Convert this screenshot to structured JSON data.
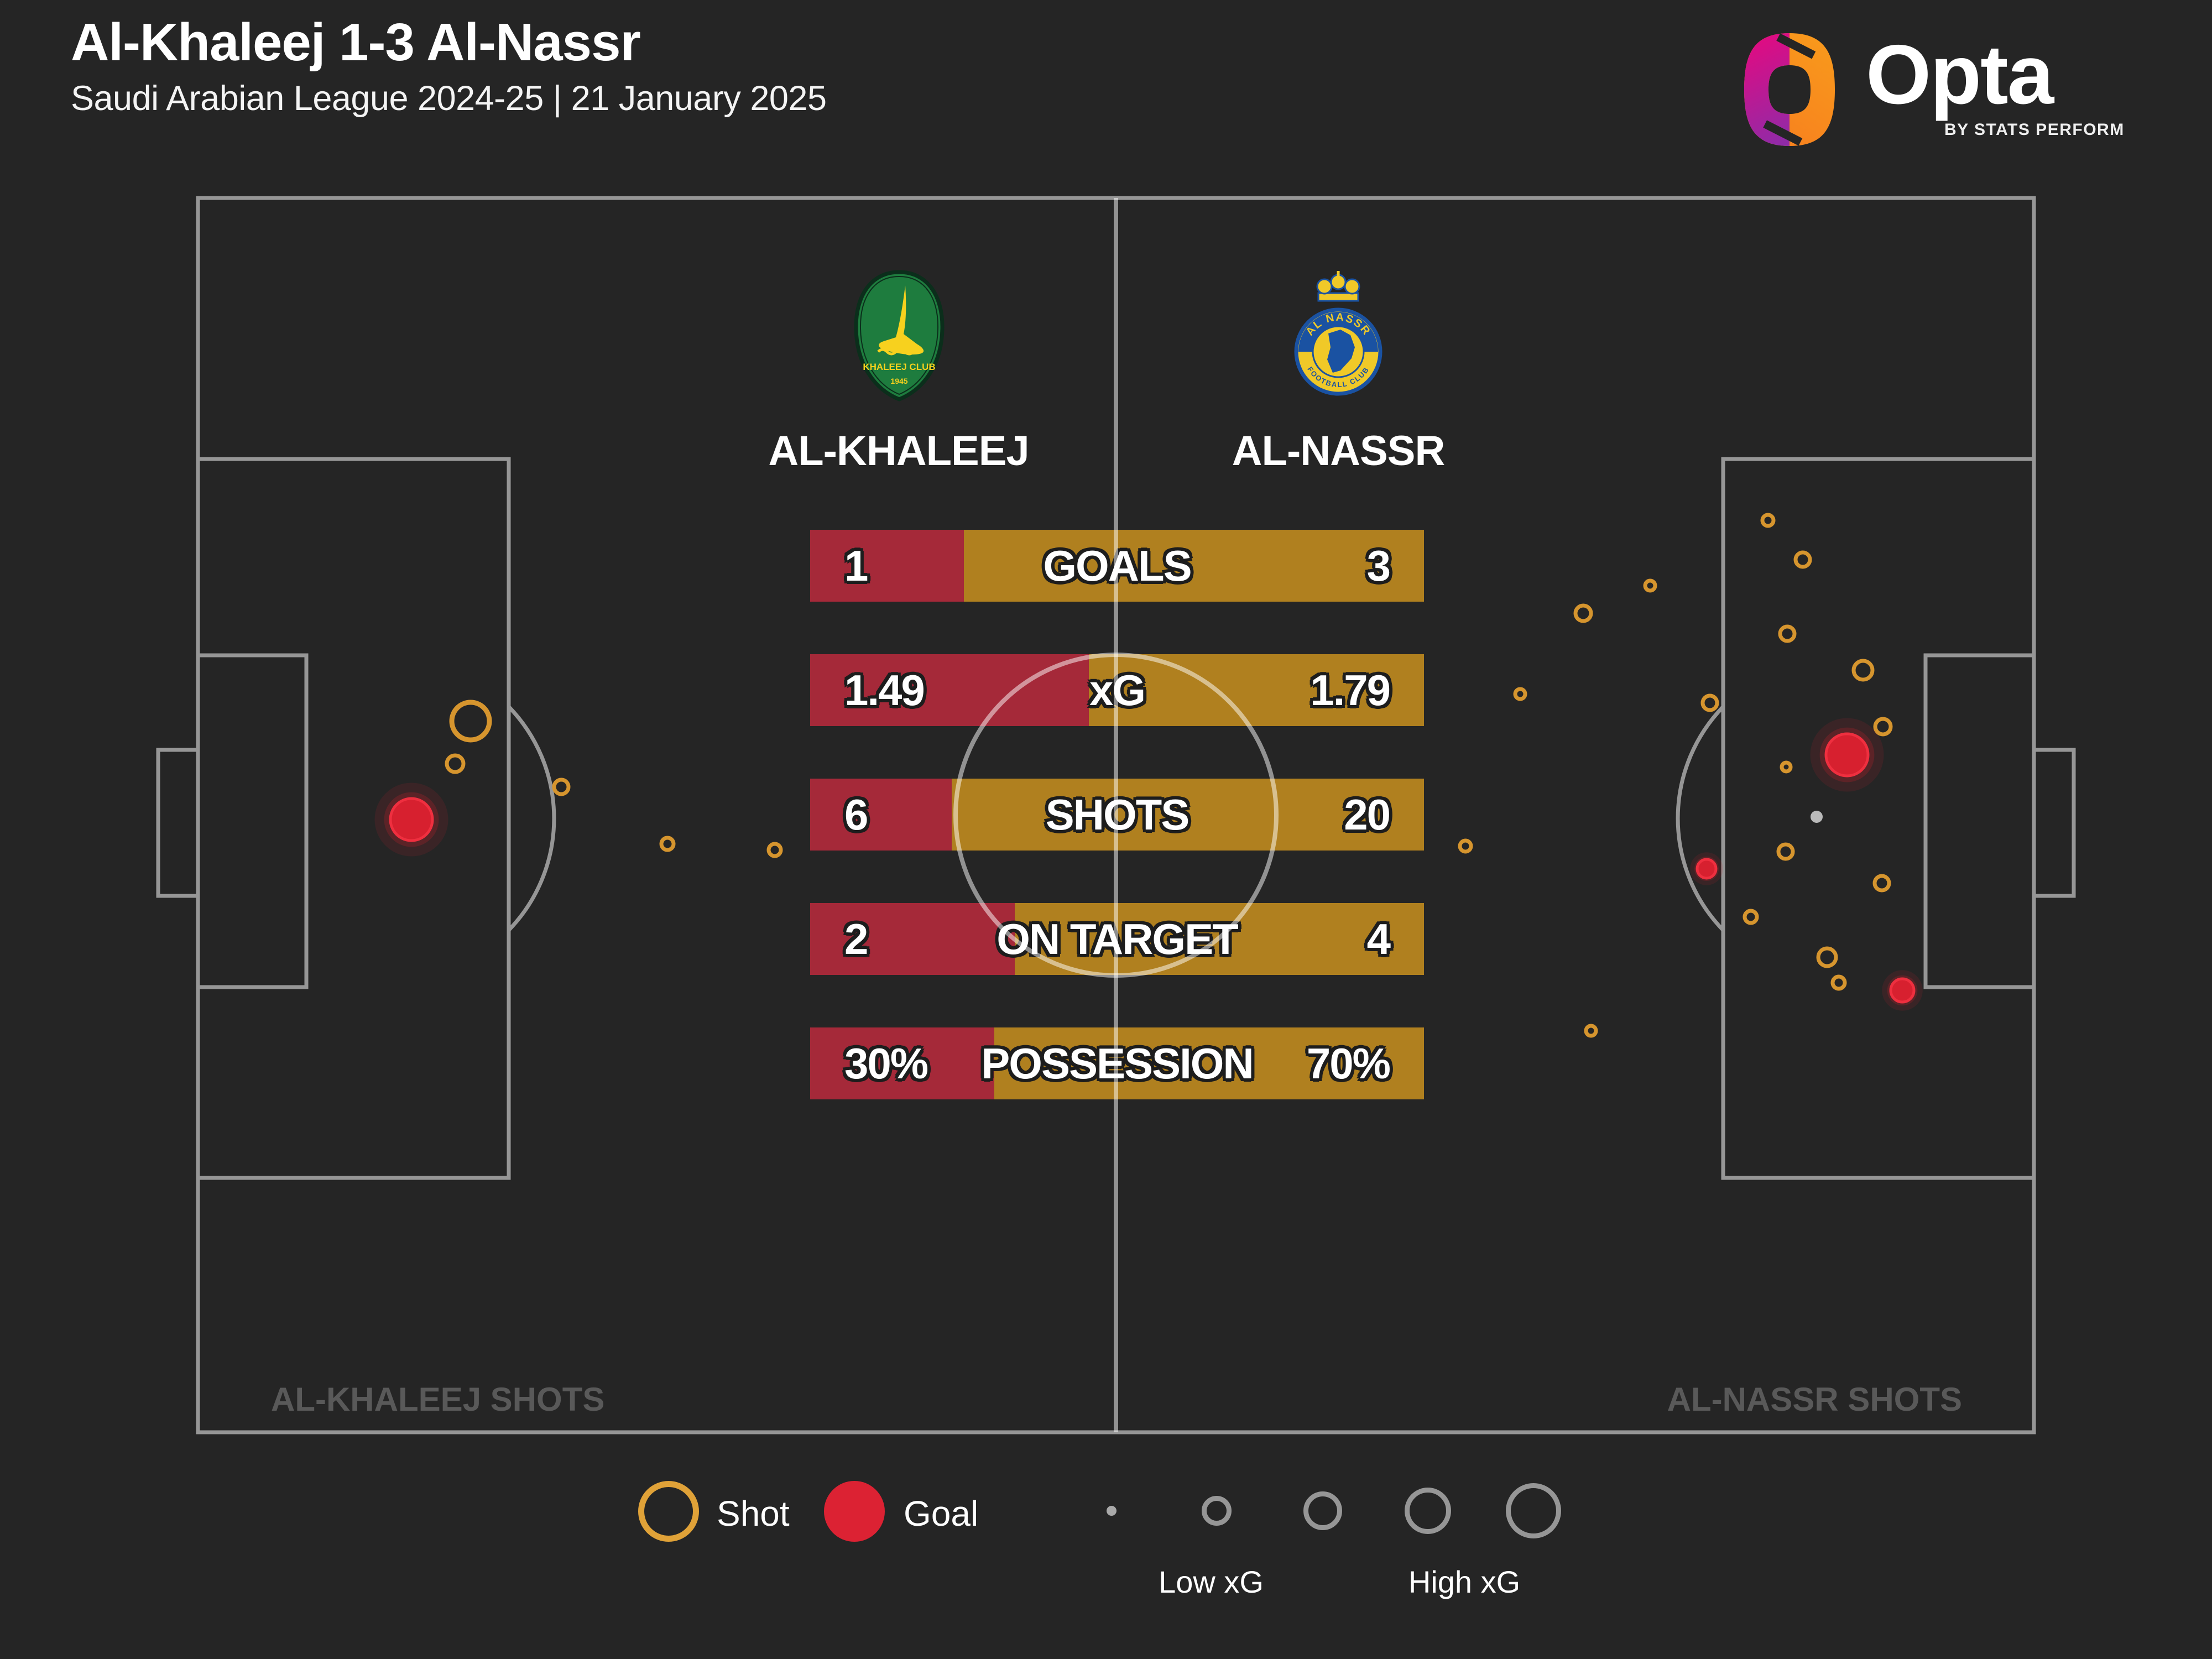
{
  "header": {
    "title": "Al-Khaleej 1-3 Al-Nassr",
    "subtitle": "Saudi Arabian League 2024-25 | 21 January 2025"
  },
  "logo": {
    "name": "Opta",
    "tagline": "BY STATS PERFORM"
  },
  "teams": {
    "home": {
      "name": "AL-KHALEEJ",
      "badge_text": "KHALEEJ CLUB",
      "badge_year": "1945"
    },
    "away": {
      "name": "AL-NASSR",
      "badge_top": "AL NASSR",
      "badge_bottom": "FOOTBALL CLUB"
    }
  },
  "pitch_labels": {
    "home_shots": "AL-KHALEEJ SHOTS",
    "away_shots": "AL-NASSR SHOTS"
  },
  "legend": {
    "shot": "Shot",
    "goal": "Goal",
    "low": "Low xG",
    "high": "High xG"
  },
  "colors": {
    "background": "#252525",
    "pitch_line": "#969696",
    "bar_red": "#A52939",
    "bar_gold": "#B0801F",
    "shot_orange": "#D6952E",
    "goal_red": "#D7202F",
    "corner_label_grey": "#595959"
  },
  "chart_data": {
    "type": "scatter",
    "title": "Al-Khaleej 1-3 Al-Nassr shot map with match stats",
    "legend_position": "bottom",
    "size_encoding": "marker radius proportional to xG (Low xG small, High xG large)",
    "stats": [
      {
        "label": "GOALS",
        "home": "1",
        "away": "3",
        "home_frac": 0.25
      },
      {
        "label": "xG",
        "home": "1.49",
        "away": "1.79",
        "home_frac": 0.454
      },
      {
        "label": "SHOTS",
        "home": "6",
        "away": "20",
        "home_frac": 0.231
      },
      {
        "label": "ON TARGET",
        "home": "2",
        "away": "4",
        "home_frac": 0.333
      },
      {
        "label": "POSSESSION",
        "home": "30%",
        "away": "70%",
        "home_frac": 0.3
      }
    ],
    "series": [
      {
        "name": "Al-Khaleej shots",
        "marker": "open-circle",
        "color": "#D6952E",
        "points": [
          {
            "x": 851,
            "y": 1304,
            "r": 34
          },
          {
            "x": 823,
            "y": 1381,
            "r": 15
          },
          {
            "x": 1015,
            "y": 1423,
            "r": 13
          },
          {
            "x": 1207,
            "y": 1526,
            "r": 11
          },
          {
            "x": 1401,
            "y": 1537,
            "r": 11
          }
        ]
      },
      {
        "name": "Al-Khaleej goals",
        "marker": "filled-circle",
        "color": "#D7202F",
        "points": [
          {
            "x": 744,
            "y": 1482,
            "r": 38
          }
        ]
      },
      {
        "name": "Al-Nassr shots",
        "marker": "open-circle",
        "color": "#D6952E",
        "points": [
          {
            "x": 3197,
            "y": 941,
            "r": 10
          },
          {
            "x": 3260,
            "y": 1012,
            "r": 13
          },
          {
            "x": 2984,
            "y": 1059,
            "r": 9
          },
          {
            "x": 2863,
            "y": 1109,
            "r": 14
          },
          {
            "x": 3232,
            "y": 1146,
            "r": 13
          },
          {
            "x": 3369,
            "y": 1212,
            "r": 17
          },
          {
            "x": 2749,
            "y": 1255,
            "r": 9
          },
          {
            "x": 3092,
            "y": 1271,
            "r": 13
          },
          {
            "x": 3405,
            "y": 1314,
            "r": 14
          },
          {
            "x": 3230,
            "y": 1387,
            "r": 8
          },
          {
            "x": 2650,
            "y": 1530,
            "r": 10
          },
          {
            "x": 3229,
            "y": 1540,
            "r": 13
          },
          {
            "x": 3403,
            "y": 1597,
            "r": 13
          },
          {
            "x": 3166,
            "y": 1658,
            "r": 11
          },
          {
            "x": 3304,
            "y": 1731,
            "r": 16
          },
          {
            "x": 3325,
            "y": 1777,
            "r": 11
          },
          {
            "x": 2877,
            "y": 1864,
            "r": 9
          }
        ]
      },
      {
        "name": "Al-Nassr goals",
        "marker": "filled-circle",
        "color": "#D7202F",
        "points": [
          {
            "x": 3340,
            "y": 1365,
            "r": 38
          },
          {
            "x": 3086,
            "y": 1571,
            "r": 17
          },
          {
            "x": 3440,
            "y": 1791,
            "r": 21
          }
        ]
      }
    ]
  }
}
